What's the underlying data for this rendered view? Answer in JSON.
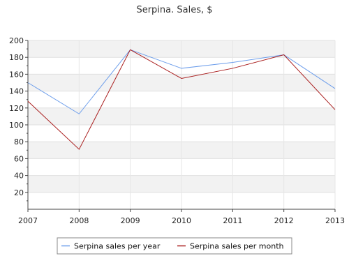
{
  "chart_data": {
    "type": "line",
    "title": "Serpina. Sales, $",
    "xlabel": "",
    "ylabel": "",
    "x": [
      2007,
      2008,
      2009,
      2010,
      2011,
      2012,
      2013
    ],
    "xlim": [
      2007,
      2013
    ],
    "ylim": [
      0,
      200
    ],
    "y_ticks": [
      20,
      40,
      60,
      80,
      100,
      120,
      140,
      160,
      180,
      200
    ],
    "x_ticks": [
      "2007",
      "2008",
      "2009",
      "2010",
      "2011",
      "2012",
      "2013"
    ],
    "grid": true,
    "legend_position": "bottom",
    "series": [
      {
        "name": "Serpina sales per year",
        "color": "#6d9eeb",
        "values": [
          150,
          113,
          189,
          167,
          174,
          183,
          143
        ]
      },
      {
        "name": "Serpina sales per month",
        "color": "#aa1f1f",
        "values": [
          128,
          71,
          189,
          155,
          167,
          183,
          118
        ]
      }
    ]
  }
}
